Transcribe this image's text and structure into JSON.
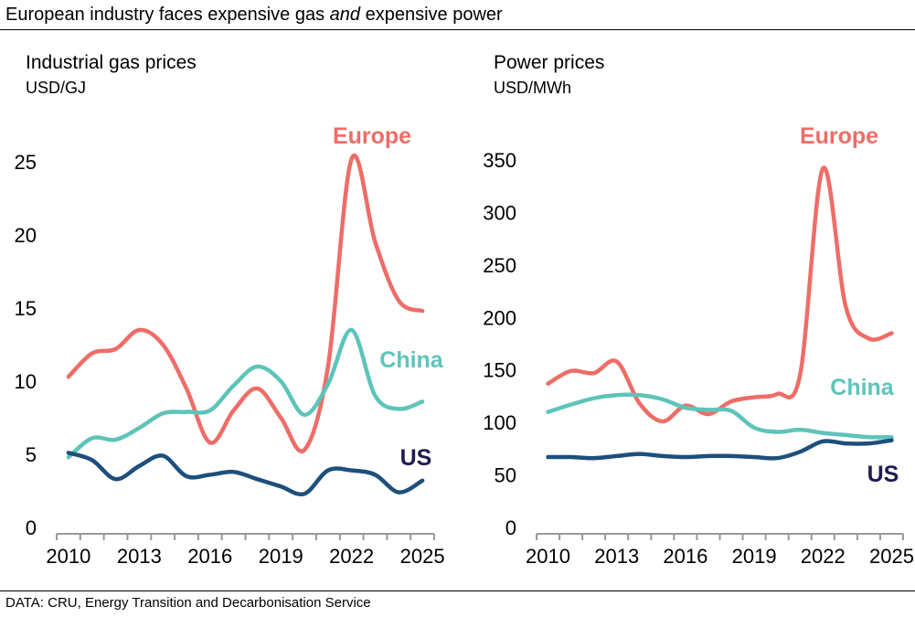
{
  "title_parts": {
    "before": "European industry faces expensive gas ",
    "em": "and",
    "after": " expensive power"
  },
  "source": "DATA: CRU, Energy Transition and Decarbonisation Service",
  "colors": {
    "Europe": "#ee6d68",
    "China": "#5ec4ba",
    "US_line": "#1d4f7c",
    "US_label": "#1f1c4d"
  },
  "chart_data": [
    {
      "type": "line",
      "title": "Industrial gas prices",
      "ylabel": "USD/GJ",
      "x": [
        2010,
        2011,
        2012,
        2013,
        2014,
        2015,
        2016,
        2017,
        2018,
        2019,
        2020,
        2021,
        2022,
        2023,
        2024,
        2025
      ],
      "xticks": [
        "2010",
        "2013",
        "2016",
        "2019",
        "2022",
        "2025"
      ],
      "yticks": [
        "0",
        "5",
        "10",
        "15",
        "20",
        "25"
      ],
      "ylim": [
        0,
        25
      ],
      "grid": false,
      "series": [
        {
          "name": "Europe",
          "values": [
            10.3,
            11.9,
            12.2,
            13.5,
            12.5,
            9.5,
            5.8,
            8.0,
            9.5,
            7.5,
            5.3,
            11.0,
            25.2,
            19.5,
            15.5,
            14.8
          ]
        },
        {
          "name": "China",
          "values": [
            4.8,
            6.1,
            6.0,
            6.8,
            7.8,
            7.9,
            8.0,
            9.7,
            11.0,
            10.0,
            7.7,
            9.8,
            13.5,
            9.0,
            8.1,
            8.6
          ]
        },
        {
          "name": "US",
          "values": [
            5.1,
            4.6,
            3.3,
            4.2,
            4.9,
            3.5,
            3.6,
            3.8,
            3.3,
            2.8,
            2.3,
            3.9,
            3.9,
            3.6,
            2.4,
            3.2
          ]
        }
      ]
    },
    {
      "type": "line",
      "title": "Power prices",
      "ylabel": "USD/MWh",
      "x": [
        2010,
        2011,
        2012,
        2013,
        2014,
        2015,
        2016,
        2017,
        2018,
        2019,
        2020,
        2021,
        2022,
        2023,
        2024,
        2025
      ],
      "xticks": [
        "2010",
        "2013",
        "2016",
        "2019",
        "2022",
        "2025"
      ],
      "yticks": [
        "0",
        "50",
        "100",
        "150",
        "200",
        "250",
        "300",
        "350"
      ],
      "ylim": [
        0,
        350
      ],
      "grid": false,
      "series": [
        {
          "name": "Europe",
          "values": [
            137,
            149,
            147,
            158,
            118,
            101,
            116,
            108,
            120,
            124,
            127,
            145,
            342,
            210,
            180,
            185
          ]
        },
        {
          "name": "China",
          "values": [
            110,
            117,
            123,
            126,
            126,
            122,
            114,
            112,
            111,
            95,
            91,
            93,
            90,
            88,
            86,
            86
          ]
        },
        {
          "name": "US",
          "values": [
            67,
            67,
            66,
            68,
            70,
            68,
            67,
            68,
            68,
            67,
            66,
            72,
            82,
            80,
            80,
            83
          ]
        }
      ]
    }
  ]
}
